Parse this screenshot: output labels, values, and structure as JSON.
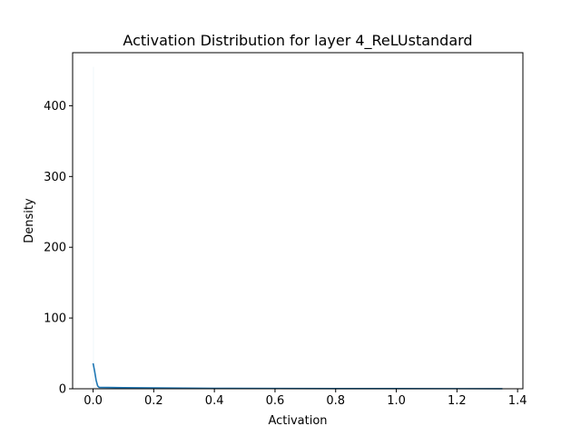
{
  "chart_data": {
    "type": "line",
    "title": "Activation Distribution for layer 4_ReLUstandard",
    "xlabel": "Activation",
    "ylabel": "Density",
    "xlim": [
      -0.0675,
      1.4175
    ],
    "ylim": [
      0,
      475
    ],
    "x_ticks": [
      0.0,
      0.2,
      0.4,
      0.6,
      0.8,
      1.0,
      1.2,
      1.4
    ],
    "x_tick_labels": [
      "0.0",
      "0.2",
      "0.4",
      "0.6",
      "0.8",
      "1.0",
      "1.2",
      "1.4"
    ],
    "y_ticks": [
      0,
      100,
      200,
      300,
      400
    ],
    "y_tick_labels": [
      "0",
      "100",
      "200",
      "300",
      "400"
    ],
    "grid": false,
    "legend": false,
    "series": [
      {
        "kind": "histogram",
        "color": "#c9ddef",
        "bins": [
          {
            "x0": 0.0,
            "x1": 0.002,
            "height": 455
          },
          {
            "x0": 0.002,
            "x1": 0.02,
            "height": 2
          },
          {
            "x0": 0.02,
            "x1": 0.2,
            "height": 0.8
          },
          {
            "x0": 0.2,
            "x1": 0.6,
            "height": 0.3
          },
          {
            "x0": 0.6,
            "x1": 1.35,
            "height": 0.1
          }
        ]
      },
      {
        "kind": "kde",
        "color": "#1f77b4",
        "x": [
          0.0,
          0.005,
          0.01,
          0.015,
          0.02,
          0.05,
          0.1,
          0.2,
          0.3,
          0.4,
          0.6,
          0.8,
          1.0,
          1.2,
          1.35
        ],
        "y": [
          36,
          25,
          12,
          4,
          2,
          1.8,
          1.5,
          1.2,
          0.9,
          0.6,
          0.4,
          0.3,
          0.2,
          0.15,
          0.1
        ]
      }
    ]
  }
}
